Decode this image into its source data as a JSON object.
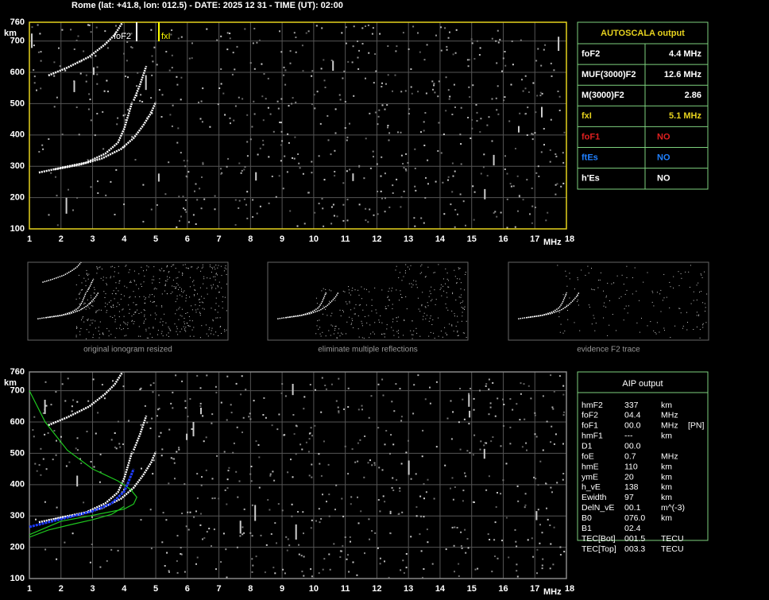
{
  "header": {
    "title": "Rome (lat: +41.8, lon: 012.5) - DATE: 2025 12 31 - TIME (UT): 02:00"
  },
  "top_plot": {
    "y_label": "km",
    "x_label": "MHz",
    "ylim": [
      100,
      760
    ],
    "xlim": [
      1,
      18
    ],
    "yticks": [
      100,
      200,
      300,
      400,
      500,
      600,
      700,
      760
    ],
    "xticks": [
      1,
      2,
      3,
      4,
      5,
      6,
      7,
      8,
      9,
      10,
      11,
      12,
      13,
      14,
      15,
      16,
      17,
      18
    ],
    "markers": [
      "foF2",
      "fxI"
    ]
  },
  "autoscala": {
    "title": "AUTOSCALA output",
    "rows": [
      [
        "foF2",
        "4.4 MHz"
      ],
      [
        "MUF(3000)F2",
        "12.6 MHz"
      ],
      [
        "M(3000)F2",
        "2.86"
      ],
      [
        "fxI",
        "5.1 MHz"
      ],
      [
        "foF1",
        "NO"
      ],
      [
        "ftEs",
        "NO"
      ],
      [
        "h'Es",
        "NO"
      ]
    ]
  },
  "thumbnails": {
    "captions": [
      "original ionogram resized",
      "eliminate multiple reflections",
      "evidence F2 trace"
    ]
  },
  "bottom_plot": {
    "y_label": "km",
    "x_label": "MHz",
    "ylim": [
      100,
      760
    ],
    "xlim": [
      1,
      18
    ],
    "yticks": [
      100,
      200,
      300,
      400,
      500,
      600,
      700,
      760
    ],
    "xticks": [
      1,
      2,
      3,
      4,
      5,
      6,
      7,
      8,
      9,
      10,
      11,
      12,
      13,
      14,
      15,
      16,
      17,
      18
    ]
  },
  "aip": {
    "title": "AIP output",
    "rows": [
      [
        "hmF2",
        "337",
        "km",
        ""
      ],
      [
        "foF2",
        "04.4",
        "MHz",
        ""
      ],
      [
        "foF1",
        "00.0",
        "MHz",
        "[PN]"
      ],
      [
        "hmF1",
        "---",
        "km",
        ""
      ],
      [
        "D1",
        "00.0",
        "",
        ""
      ],
      [
        "foE",
        "0.7",
        "MHz",
        ""
      ],
      [
        "hmE",
        "110",
        "km",
        ""
      ],
      [
        "ymE",
        "20",
        "km",
        ""
      ],
      [
        "h_vE",
        "138",
        "km",
        ""
      ],
      [
        "Ewidth",
        "97",
        "km",
        ""
      ],
      [
        "DelN_vE",
        "00.1",
        "m^(-3)",
        ""
      ],
      [
        "B0",
        "076.0",
        "km",
        ""
      ],
      [
        "B1",
        "02.4",
        "",
        ""
      ],
      [
        "TEC[Bot]",
        "001.5",
        "TECU",
        ""
      ],
      [
        "TEC[Top]",
        "003.3",
        "TECU",
        ""
      ]
    ]
  }
}
